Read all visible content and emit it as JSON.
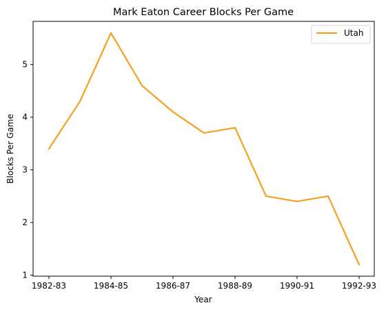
{
  "chart_data": {
    "type": "line",
    "title": "Mark Eaton  Career Blocks Per Game",
    "xlabel": "Year",
    "ylabel": "Blocks Per Game",
    "categories": [
      "1982-83",
      "1983-84",
      "1984-85",
      "1985-86",
      "1986-87",
      "1987-88",
      "1988-89",
      "1989-90",
      "1990-91",
      "1991-92",
      "1992-93"
    ],
    "x_tick_labels": [
      "1982-83",
      "1984-85",
      "1986-87",
      "1988-89",
      "1990-91",
      "1992-93"
    ],
    "y_ticks": [
      1,
      2,
      3,
      4,
      5
    ],
    "ylim": [
      0.98,
      5.82
    ],
    "grid": false,
    "legend_position": "top-right",
    "series": [
      {
        "name": "Utah",
        "color": "#f5a020",
        "values": [
          3.4,
          4.3,
          5.6,
          4.6,
          4.1,
          3.7,
          3.8,
          2.5,
          2.4,
          2.5,
          1.2
        ]
      }
    ]
  }
}
